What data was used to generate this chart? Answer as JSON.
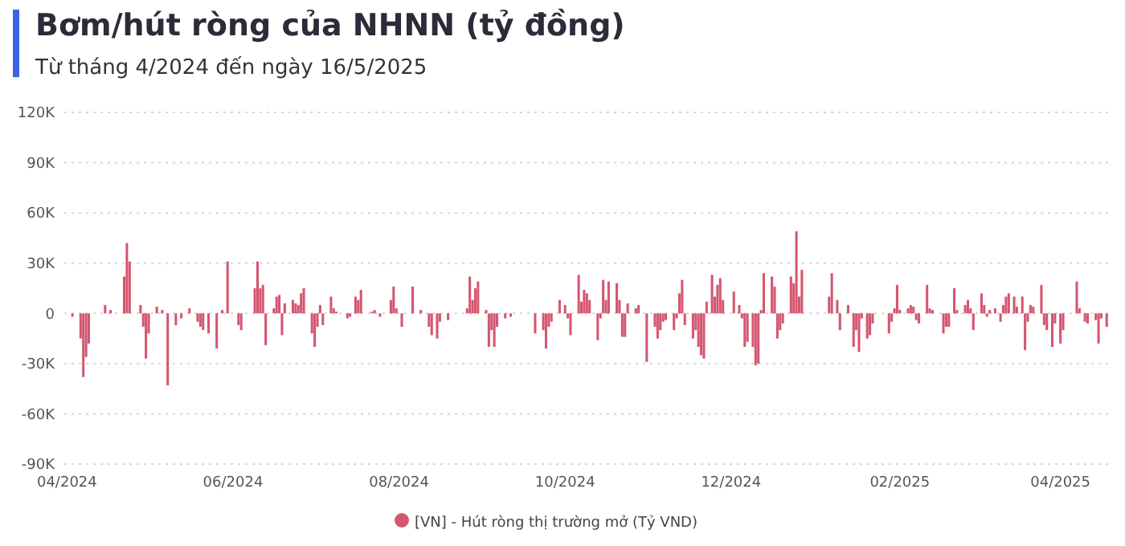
{
  "chart_data": {
    "type": "bar",
    "title": "Bơm/hút ròng của NHNN (tỷ đồng)",
    "subtitle": "Từ tháng 4/2024 đến ngày 16/5/2025",
    "x": [
      "2024-04-03",
      "2024-04-06",
      "2024-04-07",
      "2024-04-08",
      "2024-04-09",
      "2024-04-15",
      "2024-04-17",
      "2024-04-22",
      "2024-04-23",
      "2024-04-24",
      "2024-04-28",
      "2024-04-29",
      "2024-04-30",
      "2024-05-01",
      "2024-05-04",
      "2024-05-06",
      "2024-05-08",
      "2024-05-11",
      "2024-05-13",
      "2024-05-16",
      "2024-05-19",
      "2024-05-20",
      "2024-05-21",
      "2024-05-23",
      "2024-05-26",
      "2024-05-28",
      "2024-05-30",
      "2024-06-03",
      "2024-06-04",
      "2024-06-09",
      "2024-06-10",
      "2024-06-11",
      "2024-06-12",
      "2024-06-13",
      "2024-06-16",
      "2024-06-17",
      "2024-06-18",
      "2024-06-19",
      "2024-06-20",
      "2024-06-23",
      "2024-06-24",
      "2024-06-25",
      "2024-06-26",
      "2024-06-27",
      "2024-06-30",
      "2024-07-01",
      "2024-07-02",
      "2024-07-03",
      "2024-07-04",
      "2024-07-07",
      "2024-07-08",
      "2024-07-09",
      "2024-07-13",
      "2024-07-14",
      "2024-07-16",
      "2024-07-17",
      "2024-07-18",
      "2024-07-22",
      "2024-07-23",
      "2024-07-25",
      "2024-07-29",
      "2024-07-30",
      "2024-07-31",
      "2024-08-02",
      "2024-08-06",
      "2024-08-09",
      "2024-08-12",
      "2024-08-13",
      "2024-08-15",
      "2024-08-16",
      "2024-08-19",
      "2024-08-26",
      "2024-08-27",
      "2024-08-28",
      "2024-08-29",
      "2024-08-30",
      "2024-09-02",
      "2024-09-03",
      "2024-09-04",
      "2024-09-05",
      "2024-09-06",
      "2024-09-09",
      "2024-09-11",
      "2024-09-20",
      "2024-09-23",
      "2024-09-24",
      "2024-09-25",
      "2024-09-26",
      "2024-09-29",
      "2024-10-01",
      "2024-10-02",
      "2024-10-03",
      "2024-10-06",
      "2024-10-07",
      "2024-10-08",
      "2024-10-09",
      "2024-10-10",
      "2024-10-13",
      "2024-10-14",
      "2024-10-15",
      "2024-10-16",
      "2024-10-17",
      "2024-10-20",
      "2024-10-21",
      "2024-10-22",
      "2024-10-23",
      "2024-10-24",
      "2024-10-27",
      "2024-10-28",
      "2024-10-31",
      "2024-11-03",
      "2024-11-04",
      "2024-11-05",
      "2024-11-06",
      "2024-11-07",
      "2024-11-10",
      "2024-11-11",
      "2024-11-12",
      "2024-11-13",
      "2024-11-14",
      "2024-11-17",
      "2024-11-18",
      "2024-11-19",
      "2024-11-20",
      "2024-11-21",
      "2024-11-22",
      "2024-11-24",
      "2024-11-25",
      "2024-11-26",
      "2024-11-27",
      "2024-11-28",
      "2024-12-02",
      "2024-12-04",
      "2024-12-05",
      "2024-12-06",
      "2024-12-07",
      "2024-12-09",
      "2024-12-10",
      "2024-12-11",
      "2024-12-12",
      "2024-12-13",
      "2024-12-16",
      "2024-12-17",
      "2024-12-18",
      "2024-12-19",
      "2024-12-20",
      "2024-12-23",
      "2024-12-24",
      "2024-12-25",
      "2024-12-26",
      "2024-12-27",
      "2025-01-06",
      "2025-01-07",
      "2025-01-09",
      "2025-01-10",
      "2025-01-13",
      "2025-01-15",
      "2025-01-16",
      "2025-01-17",
      "2025-01-18",
      "2025-01-20",
      "2025-01-21",
      "2025-01-22",
      "2025-01-28",
      "2025-01-29",
      "2025-01-30",
      "2025-01-31",
      "2025-02-01",
      "2025-02-04",
      "2025-02-05",
      "2025-02-06",
      "2025-02-07",
      "2025-02-08",
      "2025-02-11",
      "2025-02-12",
      "2025-02-13",
      "2025-02-17",
      "2025-02-18",
      "2025-02-19",
      "2025-02-21",
      "2025-02-22",
      "2025-02-25",
      "2025-02-26",
      "2025-02-27",
      "2025-02-28",
      "2025-03-03",
      "2025-03-04",
      "2025-03-05",
      "2025-03-06",
      "2025-03-08",
      "2025-03-10",
      "2025-03-11",
      "2025-03-12",
      "2025-03-13",
      "2025-03-15",
      "2025-03-16",
      "2025-03-18",
      "2025-03-19",
      "2025-03-20",
      "2025-03-21",
      "2025-03-22",
      "2025-03-25",
      "2025-03-26",
      "2025-03-27",
      "2025-03-29",
      "2025-03-30",
      "2025-04-01",
      "2025-04-02",
      "2025-04-07",
      "2025-04-08",
      "2025-04-10",
      "2025-04-11",
      "2025-04-14",
      "2025-04-15",
      "2025-04-16",
      "2025-04-18"
    ],
    "series": [
      {
        "name": "[VN] - Hút ròng thị trường mở (Tỷ VND)",
        "color": "#d4566f",
        "values": [
          -2000,
          -15000,
          -38000,
          -26000,
          -18000,
          5000,
          2000,
          22000,
          42000,
          31000,
          5000,
          -8000,
          -27000,
          -12000,
          4000,
          2000,
          -43000,
          -7000,
          -3000,
          3000,
          -5000,
          -8000,
          -10000,
          -12000,
          -21000,
          2000,
          31000,
          -7000,
          -10000,
          15000,
          31000,
          15000,
          17000,
          -19000,
          3000,
          10000,
          11000,
          -13000,
          6000,
          8000,
          6000,
          5000,
          12000,
          15000,
          -12000,
          -20000,
          -8000,
          5000,
          -7000,
          10000,
          3000,
          1000,
          -3000,
          -2000,
          10000,
          8000,
          14000,
          1000,
          2000,
          -2000,
          8000,
          16000,
          3000,
          -8000,
          16000,
          2000,
          -8000,
          -13000,
          -15000,
          -5000,
          -4000,
          3000,
          22000,
          8000,
          15000,
          19000,
          2000,
          -20000,
          -10000,
          -20000,
          -8000,
          -3000,
          -2000,
          -12000,
          -10000,
          -21000,
          -8000,
          -5000,
          8000,
          5000,
          -3000,
          -13000,
          23000,
          7000,
          14000,
          12000,
          8000,
          -16000,
          -3000,
          20000,
          8000,
          19000,
          18000,
          8000,
          -14000,
          -14000,
          6000,
          3000,
          5000,
          -29000,
          -8000,
          -15000,
          -10000,
          -5000,
          -4000,
          -10000,
          -3000,
          12000,
          20000,
          -7000,
          -15000,
          -10000,
          -20000,
          -25000,
          -27000,
          7000,
          23000,
          10000,
          17000,
          21000,
          8000,
          13000,
          5000,
          -3000,
          -20000,
          -17000,
          -20000,
          -31000,
          -30000,
          2000,
          24000,
          22000,
          16000,
          -15000,
          -10000,
          -6000,
          22000,
          18000,
          49000,
          10000,
          26000,
          10000,
          24000,
          8000,
          -10000,
          5000,
          -20000,
          -10000,
          -23000,
          -3000,
          -15000,
          -13000,
          -6000,
          -12000,
          -5000,
          3000,
          17000,
          2000,
          3000,
          5000,
          4000,
          -4000,
          -6000,
          17000,
          3000,
          2000,
          -12000,
          -8000,
          -8000,
          15000,
          2000,
          5000,
          8000,
          3000,
          -10000,
          12000,
          5000,
          -2000,
          2000,
          3000,
          -5000,
          5000,
          10000,
          12000,
          10000,
          4000,
          10000,
          -22000,
          -5000,
          5000,
          4000,
          17000,
          -7000,
          -10000,
          -20000,
          -6000,
          -18000,
          -10000,
          19000,
          3000,
          -5000,
          -6000,
          -4000,
          -18000,
          -3000,
          -8000
        ]
      }
    ],
    "xlim": [
      "2024-03-31",
      "2025-04-20"
    ],
    "xticks": [
      {
        "value": "2024-04-01",
        "label": "04/2024"
      },
      {
        "value": "2024-06-01",
        "label": "06/2024"
      },
      {
        "value": "2024-08-01",
        "label": "08/2024"
      },
      {
        "value": "2024-10-01",
        "label": "10/2024"
      },
      {
        "value": "2024-12-01",
        "label": "12/2024"
      },
      {
        "value": "2025-02-01",
        "label": "02/2025"
      },
      {
        "value": "2025-04-01",
        "label": "04/2025"
      }
    ],
    "ylim": [
      -90000,
      120000
    ],
    "yticks": [
      {
        "value": -90000,
        "label": "-90K"
      },
      {
        "value": -60000,
        "label": "-60K"
      },
      {
        "value": -30000,
        "label": "-30K"
      },
      {
        "value": 0,
        "label": "0"
      },
      {
        "value": 30000,
        "label": "30K"
      },
      {
        "value": 60000,
        "label": "60K"
      },
      {
        "value": 90000,
        "label": "90K"
      },
      {
        "value": 120000,
        "label": "120K"
      }
    ],
    "grid": "y",
    "legend": "bottom"
  }
}
